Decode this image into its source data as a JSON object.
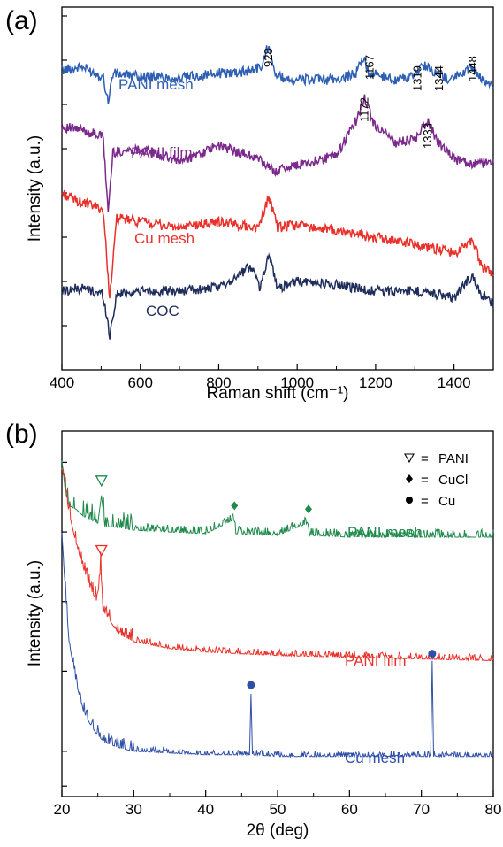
{
  "colors": {
    "pani_mesh_a": "#2f5fb3",
    "pani_film_a": "#7b2a8c",
    "cu_mesh_a": "#e8312a",
    "coc_a": "#1f2d5c",
    "pani_mesh_b": "#1f8a4c",
    "pani_film_b": "#e8312a",
    "cu_mesh_b": "#2f4fa8"
  },
  "chart_data": [
    {
      "panel_label": "(a)",
      "type": "line",
      "xlabel": "Raman shift (cm⁻¹)",
      "ylabel": "Intensity (a.u.)",
      "xlim": [
        400,
        1500
      ],
      "xticks": [
        "400",
        "600",
        "800",
        "1000",
        "1200",
        "1400"
      ],
      "grid": false,
      "series": [
        {
          "name": "PANI mesh",
          "color_key": "pani_mesh_a",
          "baseline": 7.9,
          "x": [
            400,
            450,
            505,
            518,
            530,
            600,
            700,
            800,
            860,
            910,
            928,
            945,
            1000,
            1100,
            1150,
            1167,
            1185,
            1250,
            1300,
            1319,
            1344,
            1390,
            1448,
            1470,
            1500
          ],
          "y": [
            8.0,
            8.1,
            7.8,
            7.0,
            7.9,
            7.8,
            7.75,
            7.9,
            7.95,
            8.1,
            8.9,
            7.8,
            7.7,
            7.7,
            7.9,
            8.4,
            7.9,
            7.7,
            7.8,
            8.2,
            8.0,
            7.7,
            8.1,
            7.7,
            7.5
          ]
        },
        {
          "name": "PANI film",
          "color_key": "pani_film_a",
          "baseline": 5.6,
          "x": [
            400,
            450,
            505,
            518,
            530,
            600,
            700,
            800,
            900,
            940,
            1000,
            1100,
            1150,
            1172,
            1195,
            1250,
            1300,
            1333,
            1360,
            1400,
            1450,
            1500
          ],
          "y": [
            6.2,
            6.1,
            5.9,
            3.5,
            5.4,
            5.5,
            5.1,
            5.6,
            5.2,
            4.8,
            5.0,
            5.3,
            6.4,
            7.1,
            6.3,
            5.7,
            5.8,
            6.4,
            5.7,
            5.2,
            5.0,
            5.1
          ]
        },
        {
          "name": "Cu mesh",
          "color_key": "cu_mesh_a",
          "baseline": 3.4,
          "x": [
            400,
            450,
            505,
            522,
            540,
            600,
            700,
            800,
            900,
            928,
            950,
            1000,
            1100,
            1200,
            1300,
            1400,
            1448,
            1470,
            1500
          ],
          "y": [
            4.1,
            3.8,
            3.6,
            0.8,
            3.3,
            3.2,
            3.0,
            3.2,
            3.0,
            4.0,
            3.0,
            3.1,
            2.9,
            2.7,
            2.5,
            2.2,
            2.6,
            1.8,
            1.5
          ]
        },
        {
          "name": "COC",
          "color_key": "coc_a",
          "baseline": 1.0,
          "x": [
            400,
            450,
            505,
            522,
            540,
            600,
            700,
            800,
            885,
            905,
            928,
            950,
            1000,
            1100,
            1200,
            1300,
            1400,
            1448,
            1470,
            1500
          ],
          "y": [
            1.0,
            1.1,
            0.9,
            -0.4,
            0.9,
            1.0,
            1.0,
            1.1,
            1.8,
            1.1,
            2.2,
            1.1,
            1.3,
            1.2,
            1.0,
            1.0,
            0.8,
            1.5,
            0.9,
            0.6
          ]
        }
      ],
      "peak_labels": [
        "928",
        "1167",
        "1172",
        "1319",
        "1344",
        "1448",
        "1333"
      ],
      "peak_positions": [
        928,
        1167,
        1172,
        1319,
        1344,
        1448,
        1333
      ]
    },
    {
      "panel_label": "(b)",
      "type": "line",
      "xlabel": "2θ (deg)",
      "ylabel": "Intensity (a.u.)",
      "xlim": [
        20,
        80
      ],
      "xticks": [
        "20",
        "30",
        "40",
        "50",
        "60",
        "70",
        "80"
      ],
      "grid": false,
      "legend": [
        {
          "symbol": "∇",
          "eq": "=",
          "label": "PANI",
          "color_key": "legend"
        },
        {
          "symbol": "♦",
          "eq": "=",
          "label": "CuCl",
          "color_key": "legend"
        },
        {
          "symbol": "●",
          "eq": "=",
          "label": "Cu",
          "color_key": "legend"
        }
      ],
      "legend_placement": "top-right",
      "series": [
        {
          "name": "PANI mesh",
          "color_key": "pani_mesh_b",
          "x": [
            20,
            20.5,
            21,
            22,
            23,
            24,
            25,
            25.5,
            26,
            27,
            30,
            35,
            40,
            43.9,
            44.2,
            50,
            54.2,
            54.5,
            60,
            70,
            80
          ],
          "y": [
            9.7,
            8.8,
            8.4,
            8.3,
            8.1,
            8.0,
            7.9,
            8.7,
            7.8,
            7.8,
            7.7,
            7.65,
            7.6,
            8.0,
            7.6,
            7.55,
            7.9,
            7.55,
            7.5,
            7.5,
            7.5
          ],
          "markers": [
            {
              "x": 25.5,
              "symbol": "∇"
            },
            {
              "x": 44,
              "symbol": "♦"
            },
            {
              "x": 54.3,
              "symbol": "♦"
            }
          ]
        },
        {
          "name": "PANI film",
          "color_key": "pani_film_b",
          "x": [
            20,
            20.5,
            21,
            22,
            23,
            24,
            25,
            25.4,
            25.7,
            26,
            27,
            28,
            30,
            35,
            40,
            50,
            60,
            70,
            80
          ],
          "y": [
            9.5,
            8.8,
            8.2,
            7.3,
            6.6,
            6.0,
            5.6,
            6.7,
            5.4,
            5.3,
            5.0,
            4.7,
            4.5,
            4.3,
            4.2,
            4.1,
            4.05,
            4.0,
            3.95
          ],
          "markers": [
            {
              "x": 25.5,
              "symbol": "∇"
            }
          ]
        },
        {
          "name": "Cu mesh",
          "color_key": "cu_mesh_b",
          "x": [
            20,
            20.5,
            21,
            22,
            23,
            24,
            25,
            26,
            28,
            30,
            35,
            40,
            46.1,
            46.3,
            46.5,
            50,
            60,
            71.3,
            71.5,
            71.7,
            80
          ],
          "y": [
            7.6,
            5.9,
            4.5,
            3.3,
            2.5,
            2.1,
            1.8,
            1.6,
            1.45,
            1.35,
            1.3,
            1.25,
            1.25,
            3.0,
            1.25,
            1.2,
            1.2,
            1.2,
            3.9,
            1.2,
            1.2
          ],
          "markers": [
            {
              "x": 46.3,
              "symbol": "●"
            },
            {
              "x": 71.5,
              "symbol": "●"
            }
          ]
        }
      ]
    }
  ],
  "text": {
    "panel_a": "(a)",
    "panel_b": "(b)",
    "xlabel_a": "Raman shift (cm⁻¹)",
    "xlabel_b": "2θ (deg)",
    "ylabel": "Intensity (a.u.)",
    "label_pani_mesh": "PANI mesh",
    "label_pani_film": "PANI film",
    "label_cu_mesh": "Cu mesh",
    "label_coc": "COC"
  }
}
